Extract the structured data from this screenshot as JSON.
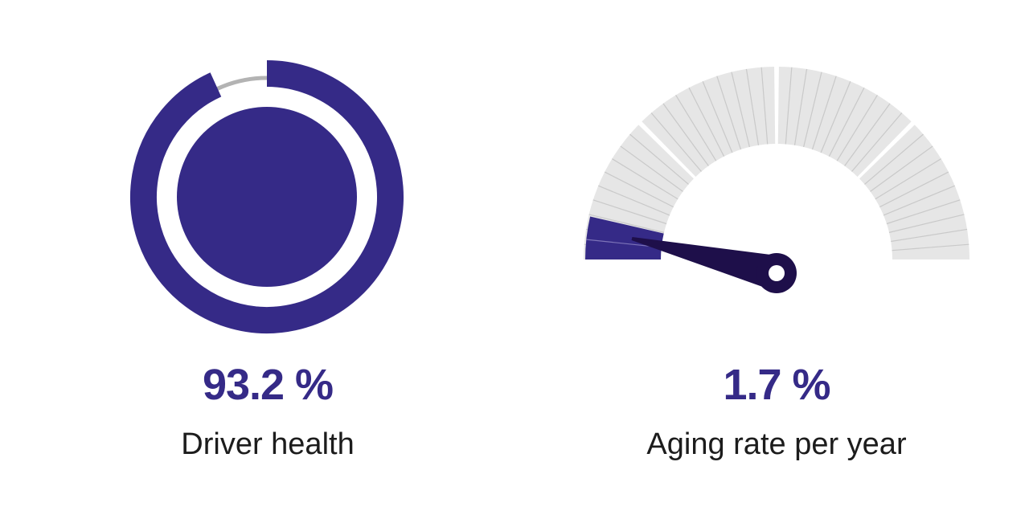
{
  "colors": {
    "accent": "#352a87",
    "needle": "#1e0f4a",
    "track": "#b3b3b3",
    "gauge_segment": "#e6e6e6"
  },
  "driver_health": {
    "value_text": "93.2 %",
    "value": 93.2,
    "label": "Driver health"
  },
  "aging_rate": {
    "value_text": "1.7 %",
    "value": 1.7,
    "label": "Aging rate per year"
  }
}
